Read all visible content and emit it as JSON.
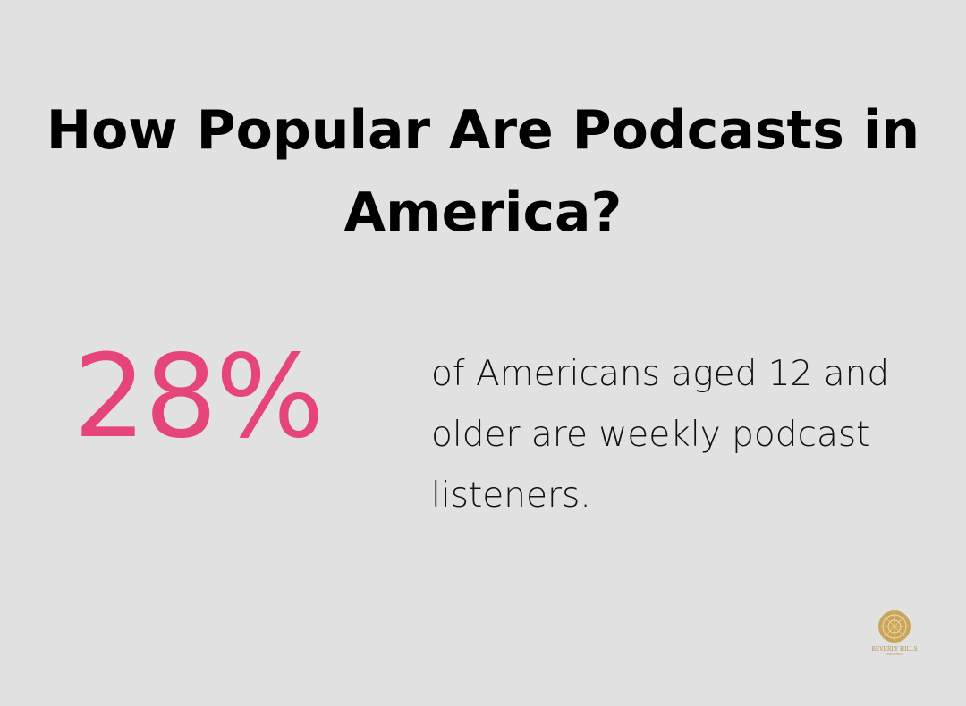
{
  "title": "How Popular Are Podcasts in America?",
  "stat": {
    "value": "28%",
    "color": "#e6457a"
  },
  "description": "of Americans aged 12 and older are weekly podcast listeners.",
  "logo": {
    "name": "BEVERLY HILLS",
    "subtitle": "PUBLISHING",
    "color": "#b8904a"
  }
}
